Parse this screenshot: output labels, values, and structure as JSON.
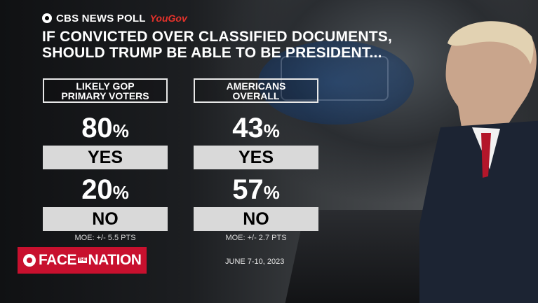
{
  "header": {
    "brand": "CBS NEWS POLL",
    "partner": "YouGov",
    "question_line1": "IF CONVICTED OVER CLASSIFIED DOCUMENTS,",
    "question_line2": "SHOULD TRUMP BE ABLE TO BE PRESIDENT..."
  },
  "groups": [
    {
      "label_line1": "LIKELY GOP",
      "label_line2": "PRIMARY VOTERS",
      "yes_value": "80",
      "yes_label": "YES",
      "no_value": "20",
      "no_label": "NO",
      "moe": "MOE: +/- 5.5 PTS"
    },
    {
      "label_line1": "AMERICANS",
      "label_line2": "OVERALL",
      "yes_value": "43",
      "yes_label": "YES",
      "no_value": "57",
      "no_label": "NO",
      "moe": "MOE: +/- 2.7 PTS"
    }
  ],
  "percent_sign": "%",
  "show": {
    "face": "FACE",
    "the": "THE",
    "nation": "NATION"
  },
  "date": "JUNE 7-10, 2023",
  "colors": {
    "accent_red": "#c8102e",
    "bar_gray": "#d9d9d9"
  },
  "icons": [
    "cbs-eye-icon"
  ]
}
